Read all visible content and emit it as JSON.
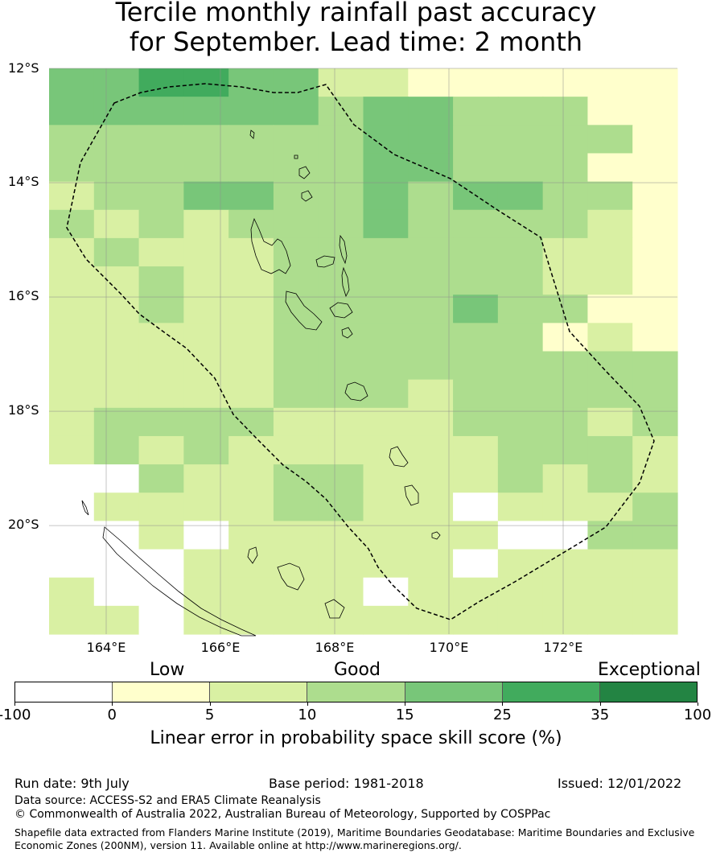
{
  "title_line1": "Tercile monthly rainfall past accuracy",
  "title_line2": "for September. Lead time: 2 month",
  "map": {
    "lat_labels": [
      "12°S",
      "14°S",
      "16°S",
      "18°S",
      "20°S"
    ],
    "lon_labels": [
      "164°E",
      "166°E",
      "168°E",
      "170°E",
      "172°E"
    ],
    "lat_values": [
      -12,
      -14,
      -16,
      -18,
      -20
    ],
    "lon_values": [
      164,
      166,
      168,
      170,
      172
    ],
    "extent": {
      "lon_min": 163,
      "lon_max": 174,
      "lat_max": -12,
      "lat_min": -21.9
    },
    "grid_step_lon": 0.833,
    "grid_step_lat": 0.555,
    "skill_grid": [
      [
        15,
        15,
        25,
        25,
        15,
        15,
        5,
        5,
        0,
        0,
        0,
        0,
        0,
        0
      ],
      [
        15,
        15,
        15,
        15,
        15,
        15,
        10,
        15,
        15,
        10,
        10,
        10,
        0,
        0
      ],
      [
        10,
        10,
        10,
        10,
        10,
        10,
        10,
        15,
        15,
        10,
        10,
        10,
        10,
        0
      ],
      [
        10,
        10,
        10,
        10,
        10,
        10,
        10,
        15,
        15,
        10,
        10,
        10,
        0,
        0
      ],
      [
        5,
        10,
        10,
        15,
        15,
        10,
        10,
        15,
        10,
        15,
        15,
        10,
        10,
        0
      ],
      [
        10,
        5,
        10,
        5,
        10,
        10,
        10,
        15,
        10,
        10,
        10,
        10,
        5,
        0
      ],
      [
        5,
        10,
        5,
        5,
        5,
        10,
        10,
        10,
        10,
        10,
        10,
        5,
        5,
        0
      ],
      [
        5,
        5,
        10,
        5,
        5,
        10,
        10,
        10,
        10,
        10,
        10,
        5,
        5,
        0
      ],
      [
        5,
        5,
        10,
        5,
        5,
        10,
        10,
        10,
        10,
        15,
        10,
        10,
        0,
        0
      ],
      [
        5,
        5,
        5,
        5,
        5,
        10,
        10,
        10,
        10,
        10,
        10,
        0,
        5,
        0
      ],
      [
        5,
        5,
        5,
        5,
        5,
        10,
        10,
        10,
        10,
        10,
        10,
        10,
        10,
        10
      ],
      [
        5,
        5,
        5,
        5,
        5,
        10,
        10,
        10,
        5,
        10,
        10,
        10,
        10,
        10
      ],
      [
        5,
        10,
        10,
        10,
        10,
        5,
        5,
        5,
        5,
        10,
        10,
        10,
        5,
        10
      ],
      [
        5,
        10,
        5,
        10,
        5,
        5,
        5,
        5,
        5,
        5,
        10,
        10,
        10,
        5
      ],
      [
        -100,
        -100,
        10,
        5,
        5,
        10,
        10,
        5,
        5,
        5,
        10,
        5,
        10,
        5
      ],
      [
        -100,
        5,
        5,
        5,
        5,
        10,
        10,
        5,
        5,
        -100,
        5,
        5,
        5,
        10
      ],
      [
        -100,
        -100,
        5,
        -100,
        5,
        5,
        5,
        5,
        5,
        5,
        -100,
        -100,
        10,
        10
      ],
      [
        -100,
        -100,
        -100,
        5,
        5,
        5,
        5,
        5,
        5,
        -100,
        5,
        5,
        5,
        5
      ],
      [
        5,
        -100,
        -100,
        5,
        5,
        5,
        5,
        -100,
        5,
        5,
        5,
        5,
        5,
        5
      ],
      [
        5,
        5,
        -100,
        5,
        5,
        5,
        5,
        5,
        5,
        5,
        5,
        5,
        5,
        5
      ]
    ]
  },
  "legend": {
    "category_low": "Low",
    "category_good": "Good",
    "category_exceptional": "Exceptional",
    "ticks": [
      "-100",
      "0",
      "5",
      "10",
      "15",
      "25",
      "35",
      "100"
    ],
    "colors": [
      "#ffffff",
      "#ffffcc",
      "#d9f0a3",
      "#addd8e",
      "#78c679",
      "#41ab5d",
      "#238443"
    ],
    "label": "Linear error in probability space skill score (%)"
  },
  "footer": {
    "run_date": "Run date: 9th July",
    "base_period": "Base period: 1981-2018",
    "issued": "Issued: 12/01/2022",
    "data_source": "Data source: ACCESS-S2 and ERA5 Climate Reanalysis",
    "copyright": "© Commonwealth of Australia 2022, Australian Bureau of Meteorology, Supported by COSPPac",
    "shapefile_line1": "Shapefile data extracted from Flanders Marine Institute (2019), Maritime Boundaries Geodatabase: Maritime Boundaries and Exclusive",
    "shapefile_line2": "Economic Zones (200NM), version 11. Available online at http://www.marineregions.org/."
  }
}
